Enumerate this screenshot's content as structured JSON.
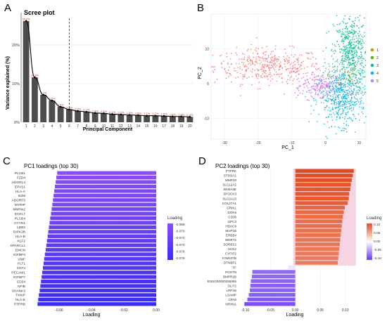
{
  "panels": {
    "a": "A",
    "b": "B",
    "c": "C",
    "d": "D"
  },
  "chart_data": [
    {
      "panel": "A",
      "type": "bar",
      "title": "Scree plot",
      "xlabel": "Principal Component",
      "ylabel": "Variance explained (%)",
      "categories": [
        "1",
        "2",
        "3",
        "4",
        "5",
        "6",
        "7",
        "8",
        "9",
        "10",
        "11",
        "12",
        "13",
        "14",
        "15",
        "16",
        "17",
        "18",
        "19",
        "20"
      ],
      "values": [
        26.2,
        11.6,
        7.1,
        5.6,
        4.0,
        3.3,
        2.9,
        2.7,
        2.4,
        2.3,
        2.1,
        2.0,
        1.9,
        1.8,
        1.7,
        1.7,
        1.6,
        1.5,
        1.5,
        1.4
      ],
      "bar_labels": [
        "26.2%",
        "11.6%",
        "7.1%",
        "5.6%",
        "4.0%",
        "3.3%",
        "2.9%",
        "2.7%",
        "2.4%",
        "2.3%",
        "2.1%",
        "2.0%",
        "1.9%",
        "1.8%",
        "1.7%",
        "1.7%",
        "1.6%",
        "1.5%",
        "1.5%",
        "1.4%"
      ],
      "yticks": [
        "0%",
        "10%",
        "20%"
      ],
      "ylim": [
        0,
        28
      ],
      "cutoff_line_x": 5.5,
      "bar_color": "#4d4d4d",
      "line_color": "#000000"
    },
    {
      "panel": "B",
      "type": "scatter",
      "xlabel": "PC_1",
      "ylabel": "PC_2",
      "xticks": [
        "-30",
        "-20",
        "-10",
        "0",
        "10"
      ],
      "yticks": [
        "-10",
        "0",
        "10"
      ],
      "xlim": [
        -34,
        12
      ],
      "ylim": [
        -16,
        20
      ],
      "legend": {
        "position": "right",
        "items": [
          {
            "label": "1",
            "color": "#c49a00"
          },
          {
            "label": "2",
            "color": "#53b400"
          },
          {
            "label": "3",
            "color": "#00c094"
          },
          {
            "label": "4",
            "color": "#00b6eb"
          },
          {
            "label": "5",
            "color": "#a58aff"
          }
        ]
      },
      "extra_colors": [
        "#f8766d",
        "#fb61d7"
      ],
      "clusters": [
        {
          "name": "salmon",
          "color": "#f8766d",
          "cx": -17,
          "cy": 5,
          "sx": 8,
          "sy": 2.5,
          "n": 420
        },
        {
          "name": "green",
          "color": "#00c094",
          "cx": 7.5,
          "cy": 9,
          "sx": 2.5,
          "sy": 5.5,
          "n": 520
        },
        {
          "name": "blue",
          "color": "#00b6eb",
          "cx": 5,
          "cy": -4,
          "sx": 3.5,
          "sy": 4,
          "n": 520
        },
        {
          "name": "purple",
          "color": "#a58aff",
          "cx": -1,
          "cy": -1,
          "sx": 3,
          "sy": 2,
          "n": 160
        },
        {
          "name": "pink",
          "color": "#fb61d7",
          "cx": -4,
          "cy": 0,
          "sx": 2.5,
          "sy": 2,
          "n": 70
        },
        {
          "name": "olive",
          "color": "#c49a00",
          "cx": 6,
          "cy": 3,
          "sx": 3,
          "sy": 3,
          "n": 40
        }
      ]
    },
    {
      "panel": "C",
      "type": "bar",
      "orientation": "horizontal",
      "title": "PC1 loadings (top 30)",
      "xlabel": "Loading",
      "xticks": [
        "-0.06",
        "-0.04",
        "-0.02",
        "0.00"
      ],
      "xlim": [
        -0.08,
        0.0
      ],
      "categories": [
        "PLCB1",
        "FZD4",
        "ADGRL4",
        "EPAS1",
        "HLA-A",
        "B2M",
        "ADGRF5",
        "MYRIP",
        "MMRN2",
        "EGFL7",
        "PLCB4",
        "CYYR1",
        "LDB2",
        "DIPK2B",
        "HLA-B",
        "KLF2",
        "SPARCL1",
        "EMCN",
        "IGFBP4",
        "VWF",
        "FLT1",
        "CD74",
        "PECAM1",
        "IGFBP7",
        "CD34",
        "NFIB",
        "SHANK3",
        "TXNIP",
        "HLA-E",
        "PTPRB"
      ],
      "values": [
        -0.0612,
        -0.0617,
        -0.0621,
        -0.0626,
        -0.063,
        -0.0634,
        -0.0638,
        -0.0642,
        -0.0646,
        -0.065,
        -0.0655,
        -0.0659,
        -0.0663,
        -0.0667,
        -0.0671,
        -0.0675,
        -0.0679,
        -0.0683,
        -0.0688,
        -0.0692,
        -0.0696,
        -0.07,
        -0.0704,
        -0.0708,
        -0.0712,
        -0.0716,
        -0.072,
        -0.0725,
        -0.0729,
        -0.0733
      ],
      "legend": {
        "title": "Loading",
        "labels": [
          "-0.068",
          "-0.070",
          "-0.072",
          "-0.074",
          "-0.076",
          "-0.078"
        ],
        "colors": [
          "#8a4dff",
          "#3a2bff"
        ]
      }
    },
    {
      "panel": "D",
      "type": "bar",
      "orientation": "horizontal",
      "title": "PC2 loadings (top 30)",
      "xlabel": "Loading",
      "xticks": [
        "-0.10",
        "-0.05",
        "0.00",
        "0.05",
        "0.10"
      ],
      "xlim": [
        -0.115,
        0.13
      ],
      "categories": [
        "PTPRK",
        "ST8SIA1",
        "MMP20",
        "SLC12A2",
        "SEMA3E",
        "SPOCK3",
        "SLC2A13",
        "COL27A1",
        "GRIK1",
        "DOK6",
        "CD36",
        "GPC3",
        "HDAC9",
        "MAP1B",
        "ERBB4",
        "WDR72",
        "SORBS2",
        "UCK2",
        "CYFIP2",
        "FAM107B",
        "DTNBP1",
        "TF",
        "POSTN",
        "BMPR1B",
        "ENSG00000255595",
        "SLIT2",
        "LRP1B",
        "LSAMP",
        "CPA6",
        "NRXN1"
      ],
      "values": [
        0.117,
        0.115,
        0.113,
        0.111,
        0.11,
        0.108,
        0.107,
        0.105,
        0.099,
        0.097,
        0.095,
        0.094,
        0.093,
        0.092,
        0.091,
        0.09,
        0.089,
        0.088,
        0.087,
        0.086,
        0.085,
        -0.014,
        -0.086,
        -0.087,
        -0.089,
        -0.09,
        -0.091,
        -0.093,
        -0.096,
        -0.102
      ],
      "legend": {
        "title": "Loading",
        "labels": [
          "0.10",
          "0.05",
          "0.00",
          "-0.05",
          "-0.10"
        ],
        "colors": [
          "#e64a1a",
          "#ffffff",
          "#6633ff"
        ]
      },
      "highlight_color": "#f2c9dc"
    }
  ]
}
